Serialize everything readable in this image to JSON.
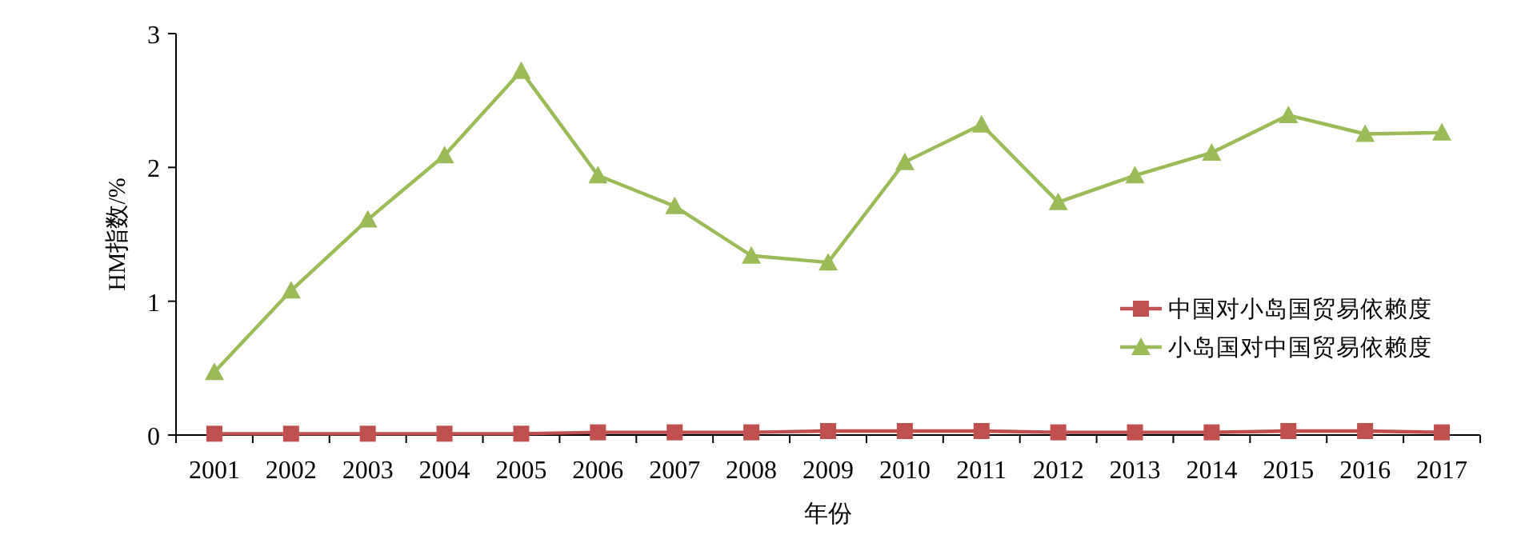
{
  "chart_data": {
    "type": "line",
    "xlabel": "年份",
    "ylabel": "HM指数/%",
    "categories": [
      "2001",
      "2002",
      "2003",
      "2004",
      "2005",
      "2006",
      "2007",
      "2008",
      "2009",
      "2010",
      "2011",
      "2012",
      "2013",
      "2014",
      "2015",
      "2016",
      "2017"
    ],
    "ylim": [
      0,
      3
    ],
    "yticks": [
      0,
      1,
      2,
      3
    ],
    "grid": false,
    "legend": "right",
    "series": [
      {
        "name": "中国对小岛国贸易依赖度",
        "color": "#c0504d",
        "marker": "square",
        "values": [
          0.01,
          0.01,
          0.01,
          0.01,
          0.01,
          0.02,
          0.02,
          0.02,
          0.03,
          0.03,
          0.03,
          0.02,
          0.02,
          0.02,
          0.03,
          0.03,
          0.02
        ]
      },
      {
        "name": "小岛国对中国贸易依赖度",
        "color": "#9bbb59",
        "marker": "triangle",
        "values": [
          0.47,
          1.08,
          1.61,
          2.09,
          2.72,
          1.94,
          1.71,
          1.34,
          1.29,
          2.04,
          2.32,
          1.74,
          1.94,
          2.11,
          2.39,
          2.25,
          2.26
        ]
      }
    ]
  }
}
